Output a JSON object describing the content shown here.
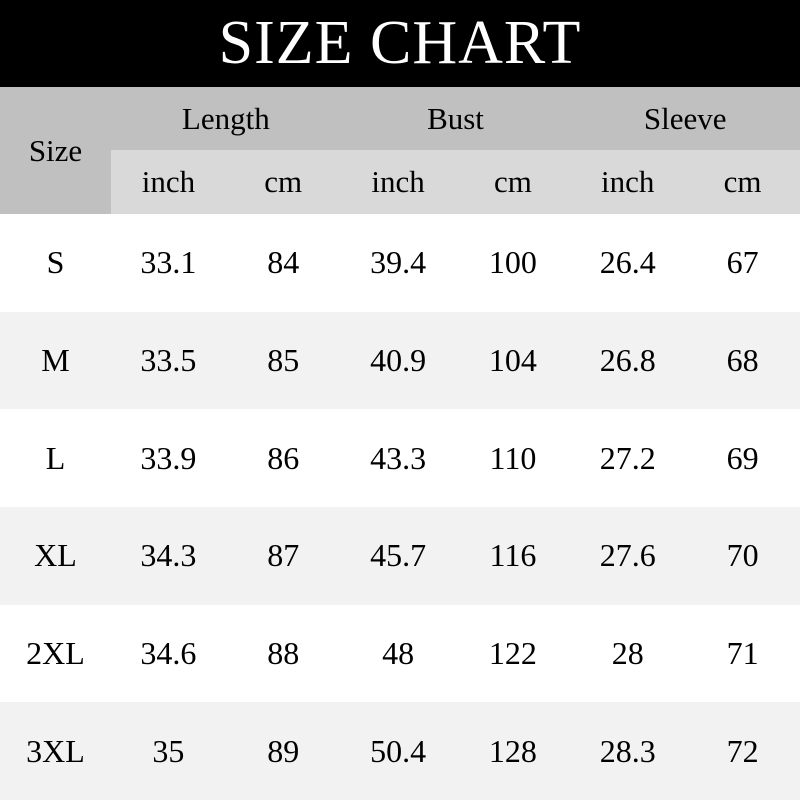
{
  "title": "SIZE CHART",
  "header": {
    "size": "Size",
    "groups": [
      "Length",
      "Bust",
      "Sleeve"
    ],
    "units": [
      "inch",
      "cm",
      "inch",
      "cm",
      "inch",
      "cm"
    ]
  },
  "colors": {
    "title_bg": "#000000",
    "header_bg": "#c0c0c0",
    "subheader_bg": "#d9d9d9",
    "alt_row_bg": "#f2f2f2"
  },
  "rows": [
    [
      "S",
      "33.1",
      "84",
      "39.4",
      "100",
      "26.4",
      "67"
    ],
    [
      "M",
      "33.5",
      "85",
      "40.9",
      "104",
      "26.8",
      "68"
    ],
    [
      "L",
      "33.9",
      "86",
      "43.3",
      "110",
      "27.2",
      "69"
    ],
    [
      "XL",
      "34.3",
      "87",
      "45.7",
      "116",
      "27.6",
      "70"
    ],
    [
      "2XL",
      "34.6",
      "88",
      "48",
      "122",
      "28",
      "71"
    ],
    [
      "3XL",
      "35",
      "89",
      "50.4",
      "128",
      "28.3",
      "72"
    ]
  ]
}
